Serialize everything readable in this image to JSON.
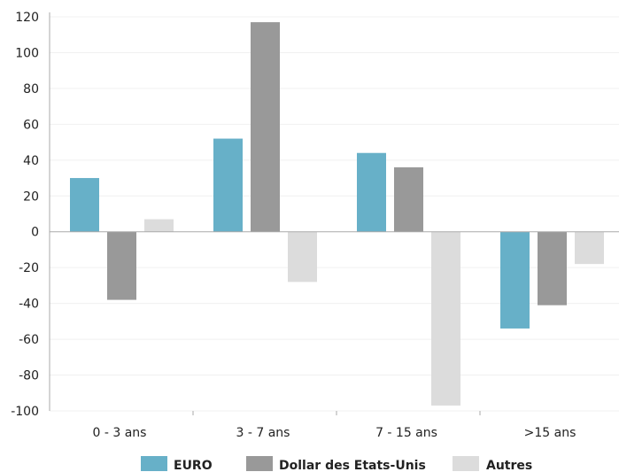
{
  "chart_data": {
    "type": "bar",
    "categories": [
      "0 - 3 ans",
      "3 - 7 ans",
      "7 - 15 ans",
      ">15 ans"
    ],
    "series": [
      {
        "name": "EURO",
        "values": [
          30,
          52,
          44,
          -54
        ],
        "color": "#67b0c8"
      },
      {
        "name": "Dollar des Etats-Unis",
        "values": [
          -38,
          117,
          36,
          -41
        ],
        "color": "#999999"
      },
      {
        "name": "Autres",
        "values": [
          7,
          -28,
          -97,
          -18
        ],
        "color": "#dcdcdc"
      }
    ],
    "yticks": [
      "120",
      "100",
      "80",
      "60",
      "40",
      "20",
      "0",
      "-20",
      "-40",
      "-60",
      "-80",
      "-100"
    ],
    "ylim": [
      -100,
      120
    ],
    "grid": true,
    "legend_position": "bottom"
  }
}
